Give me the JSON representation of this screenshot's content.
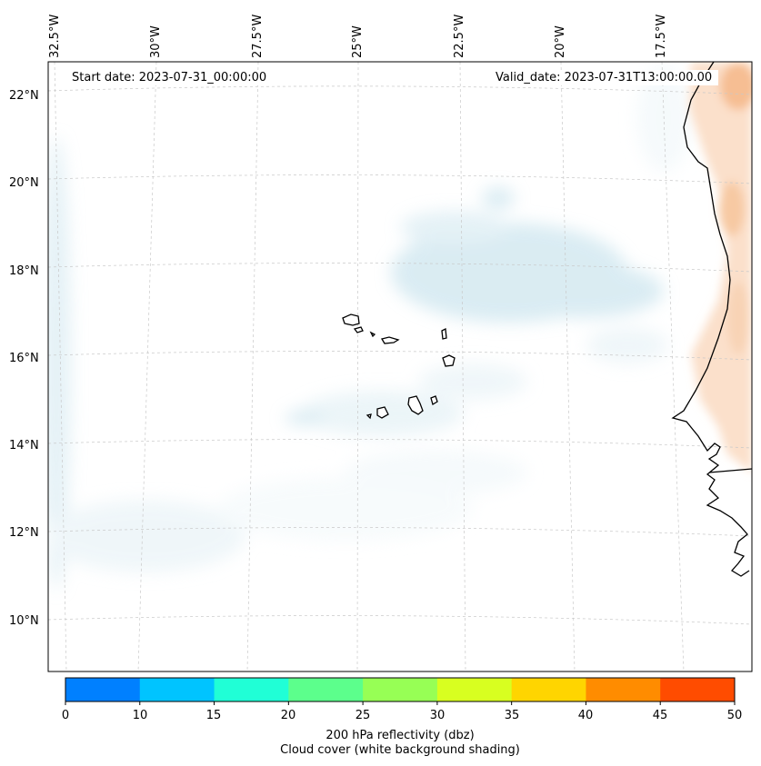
{
  "map": {
    "start_label": "Start date: 2023-07-31_00:00:00",
    "valid_label": "Valid_date: 2023-07-31T13:00:00.00",
    "lon_labels": [
      "32.5°W",
      "30°W",
      "27.5°W",
      "25°W",
      "22.5°W",
      "20°W",
      "17.5°W"
    ],
    "lat_labels": [
      "22°N",
      "20°N",
      "18°N",
      "16°N",
      "14°N",
      "12°N",
      "10°N"
    ],
    "gridlines": true,
    "cloud_color": "#bcdde9",
    "land_reflectivity_color": "#f7c9a3"
  },
  "colorbar": {
    "ticks": [
      "0",
      "10",
      "15",
      "20",
      "25",
      "30",
      "35",
      "40",
      "45",
      "50"
    ],
    "colors": [
      "#0080ff",
      "#00c4ff",
      "#20ffd6",
      "#5cff8c",
      "#97ff55",
      "#d8ff20",
      "#ffd500",
      "#ff8c00",
      "#ff4c00"
    ],
    "title_line1": "200 hPa reflectivity (dbz)",
    "title_line2": "Cloud cover (white background shading)"
  }
}
